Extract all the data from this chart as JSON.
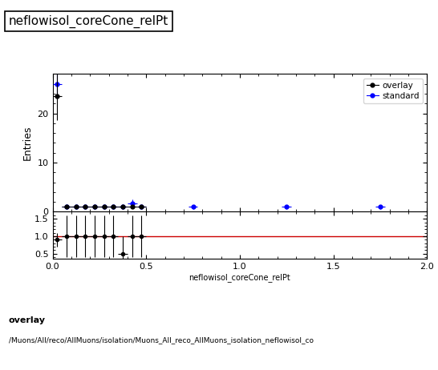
{
  "title": "neflowisol_coreCone_relPt",
  "xlabel": "neflowisol_coreCone_relPt",
  "ylabel_main": "Entries",
  "overlay_label": "overlay",
  "standard_label": "standard",
  "overlay_color": "#000000",
  "standard_color": "#0000ff",
  "xlim": [
    0,
    2
  ],
  "ylim_main": [
    0,
    28
  ],
  "ylim_ratio": [
    0.35,
    1.7
  ],
  "ratio_line_color": "#cc0000",
  "footer_text1": "overlay",
  "footer_text2": "/Muons/All/reco/AllMuons/isolation/Muons_All_reco_AllMuons_isolation_neflowisol_co",
  "overlay_x": [
    0.025,
    0.075,
    0.125,
    0.175,
    0.225,
    0.275,
    0.325,
    0.375,
    0.425,
    0.475
  ],
  "overlay_y": [
    23.5,
    1.0,
    1.0,
    1.0,
    1.0,
    1.0,
    1.0,
    1.0,
    1.0,
    1.0
  ],
  "overlay_yerr": [
    4.8,
    0.35,
    0.35,
    0.35,
    0.35,
    0.35,
    0.35,
    0.35,
    0.35,
    0.35
  ],
  "overlay_xerr": 0.025,
  "standard_x": [
    0.025,
    0.075,
    0.125,
    0.175,
    0.225,
    0.275,
    0.325,
    0.375,
    0.425,
    0.475,
    0.75,
    1.25,
    1.75
  ],
  "standard_y": [
    26.0,
    1.0,
    1.0,
    1.0,
    1.0,
    1.0,
    1.0,
    1.0,
    1.7,
    1.0,
    1.0,
    1.0,
    1.0
  ],
  "standard_yerr": [
    2.0,
    0.45,
    0.45,
    0.45,
    0.45,
    0.45,
    0.45,
    0.45,
    0.8,
    0.45,
    0.45,
    0.45,
    0.45
  ],
  "standard_xerr": 0.025,
  "ratio_x": [
    0.025,
    0.075,
    0.125,
    0.175,
    0.225,
    0.275,
    0.325,
    0.375,
    0.425,
    0.475
  ],
  "ratio_y": [
    0.9,
    1.0,
    1.0,
    1.0,
    1.0,
    1.0,
    1.0,
    0.5,
    1.0,
    1.0
  ],
  "ratio_yerr": [
    0.2,
    0.6,
    0.6,
    0.6,
    0.6,
    0.6,
    0.6,
    0.5,
    0.6,
    0.6
  ],
  "ratio_xerr": 0.025,
  "bg_color": "#ffffff"
}
